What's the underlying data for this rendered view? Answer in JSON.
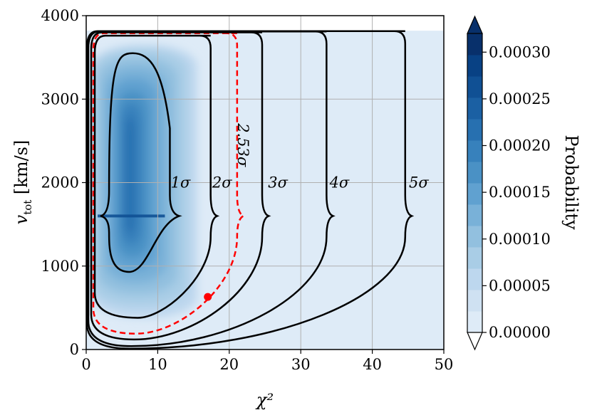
{
  "chart_data": {
    "type": "heatmap",
    "xlabel": "χ²",
    "ylabel_main": "v",
    "ylabel_sub": "tot",
    "ylabel_unit": " [km/s]",
    "xlim": [
      0,
      50
    ],
    "ylim": [
      0,
      4000
    ],
    "x_ticks": [
      0,
      10,
      20,
      30,
      40,
      50
    ],
    "y_ticks": [
      0,
      1000,
      2000,
      3000,
      4000
    ],
    "x_tick_labels": [
      "0",
      "10",
      "20",
      "30",
      "40",
      "50"
    ],
    "y_tick_labels": [
      "0",
      "1000",
      "2000",
      "3000",
      "4000"
    ],
    "grid": true,
    "colorbar": {
      "label": "Probability",
      "min": 0.0,
      "max": 0.00032,
      "ticks": [
        0.0,
        5e-05,
        0.0001,
        0.00015,
        0.0002,
        0.00025,
        0.0003
      ],
      "tick_labels": [
        "0.00000",
        "0.00005",
        "0.00010",
        "0.00015",
        "0.00020",
        "0.00025",
        "0.00030"
      ],
      "colors": [
        "#deebf7",
        "#cfe1f2",
        "#bdd7ee",
        "#a9cde6",
        "#92c0df",
        "#79b1d8",
        "#60a1d0",
        "#4a91c5",
        "#3781bc",
        "#2770b0",
        "#1b60a3",
        "#105094",
        "#084184",
        "#08306b"
      ]
    },
    "peak": {
      "chi2": 6,
      "v": 2300
    },
    "ridge_v": 1600,
    "contours": [
      {
        "label": "1σ",
        "x_max": 13,
        "x_min": 2.0,
        "y_top": 3550,
        "y_bottom": 930,
        "label_x": 13.2,
        "label_y": 2000
      },
      {
        "label": "2σ",
        "x_max": 18.3,
        "x_min": 1.2,
        "y_top": 3760,
        "y_bottom": 380,
        "label_x": 19.0,
        "label_y": 2000
      },
      {
        "label": "3σ",
        "x_max": 25.5,
        "x_min": 0.7,
        "y_top": 3800,
        "y_bottom": 120,
        "label_x": 26.8,
        "label_y": 2000
      },
      {
        "label": "4σ",
        "x_max": 34.5,
        "x_min": 0.3,
        "y_top": 3810,
        "y_bottom": 40,
        "label_x": 35.4,
        "label_y": 2000
      },
      {
        "label": "5σ",
        "x_max": 45.5,
        "x_min": 0.1,
        "y_top": 3815,
        "y_bottom": 10,
        "label_x": 46.5,
        "label_y": 2000
      }
    ],
    "highlight_contour": {
      "label": "2.53σ",
      "x_max": 22,
      "x_min": 1.0,
      "y_top": 3790,
      "y_bottom": 190,
      "color": "#ff0000"
    },
    "point": {
      "chi2": 17,
      "v": 630,
      "color": "#ff0000"
    },
    "vmax_band": 3820
  }
}
